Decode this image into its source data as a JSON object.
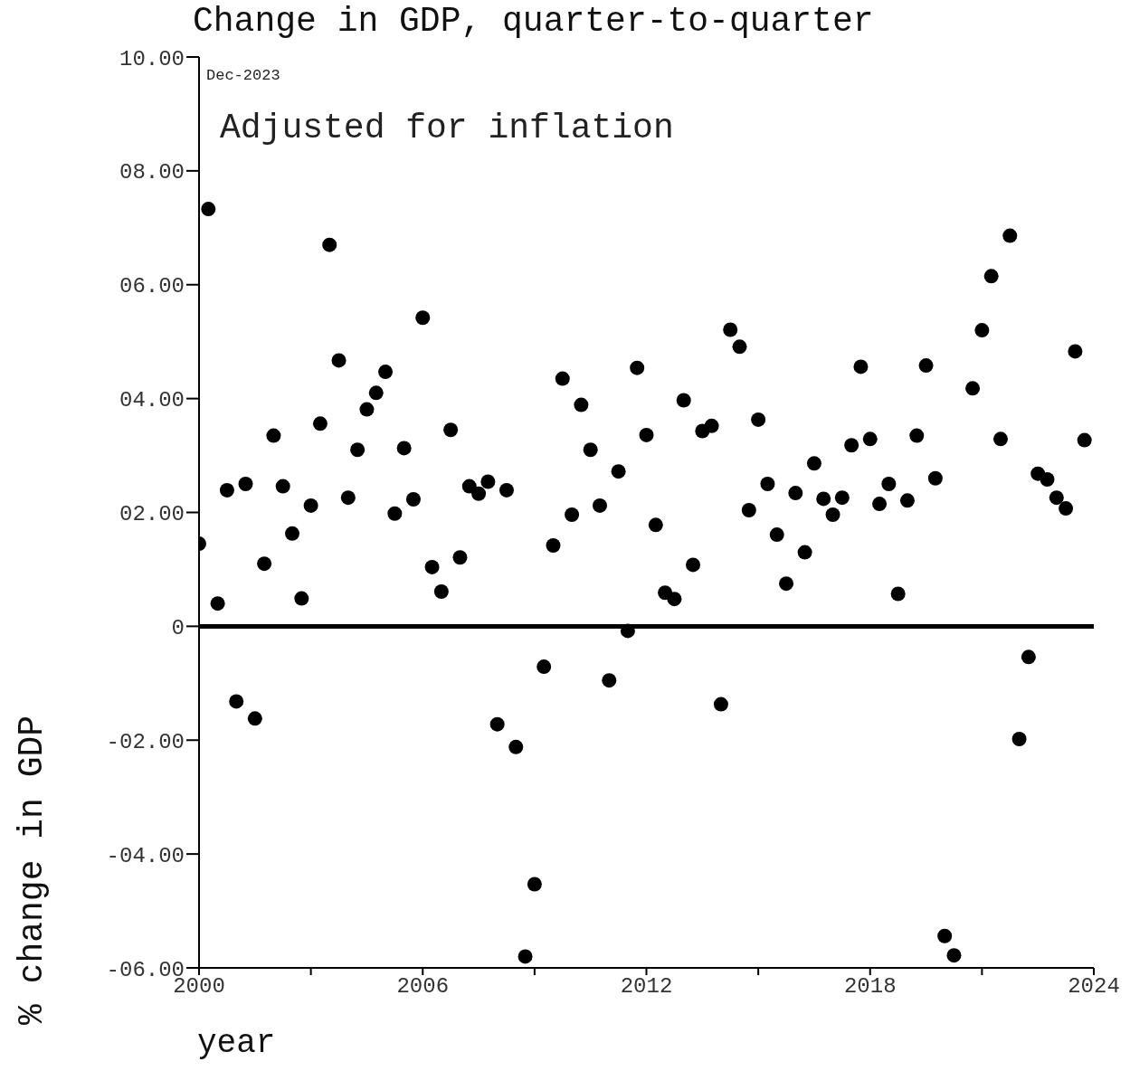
{
  "chart_data": {
    "type": "scatter",
    "title": "Change in GDP, quarter-to-quarter",
    "xlabel": "year",
    "ylabel": "% change in GDP",
    "annotations": [
      "Dec-2023",
      "Adjusted for inflation"
    ],
    "x": [
      2000,
      2000.25,
      2000.5,
      2000.75,
      2001,
      2001.25,
      2001.5,
      2001.75,
      2002,
      2002.25,
      2002.5,
      2002.75,
      2003,
      2003.25,
      2003.5,
      2003.75,
      2004,
      2004.25,
      2004.5,
      2004.75,
      2005,
      2005.25,
      2005.5,
      2005.75,
      2006,
      2006.25,
      2006.5,
      2006.75,
      2007,
      2007.25,
      2007.5,
      2007.75,
      2008,
      2008.25,
      2008.5,
      2008.75,
      2009,
      2009.25,
      2009.5,
      2009.75,
      2010,
      2010.25,
      2010.5,
      2010.75,
      2011,
      2011.25,
      2011.5,
      2011.75,
      2012,
      2012.25,
      2012.5,
      2012.75,
      2013,
      2013.25,
      2013.5,
      2013.75,
      2014,
      2014.25,
      2014.5,
      2014.75,
      2015,
      2015.25,
      2015.5,
      2015.75,
      2016,
      2016.25,
      2016.5,
      2016.75,
      2017,
      2017.25,
      2017.5,
      2017.75,
      2018,
      2018.25,
      2018.5,
      2018.75,
      2019,
      2019.25,
      2019.5,
      2019.75,
      2020,
      2020.25,
      2020.75,
      2021,
      2021.25,
      2021.5,
      2021.75,
      2022,
      2022.25,
      2022.5,
      2022.75,
      2023,
      2023.25,
      2023.5,
      2023.75
    ],
    "values": [
      1.45,
      7.33,
      0.4,
      2.39,
      -1.32,
      2.5,
      -1.62,
      1.1,
      3.35,
      2.46,
      1.63,
      0.49,
      2.12,
      3.56,
      6.7,
      4.67,
      2.26,
      3.1,
      3.81,
      4.1,
      4.47,
      1.98,
      3.13,
      2.23,
      5.42,
      1.04,
      0.61,
      3.45,
      1.21,
      2.46,
      2.33,
      2.54,
      -1.72,
      2.39,
      -2.12,
      -5.8,
      -4.53,
      -0.71,
      1.42,
      4.35,
      1.96,
      3.89,
      3.1,
      2.12,
      -0.95,
      2.72,
      -0.08,
      4.54,
      3.36,
      1.78,
      0.59,
      0.48,
      3.97,
      1.08,
      3.43,
      3.52,
      -1.37,
      5.21,
      4.91,
      2.04,
      3.63,
      2.5,
      1.61,
      0.75,
      2.34,
      1.3,
      2.86,
      2.24,
      1.96,
      2.26,
      3.18,
      4.56,
      3.29,
      2.15,
      2.5,
      0.57,
      2.21,
      3.35,
      4.58,
      2.6,
      -5.44,
      -5.78,
      4.18,
      5.2,
      6.15,
      3.29,
      6.86,
      -1.98,
      -0.54,
      2.68,
      2.58,
      2.26,
      2.07,
      4.83,
      3.27
    ],
    "color": "#000000",
    "marker": "circle",
    "xlim": [
      2000,
      2024
    ],
    "xticks": [
      2000,
      {
        "value": 2003,
        "label": null
      },
      2006,
      {
        "value": 2009,
        "label": null
      },
      2012,
      {
        "value": 2015,
        "label": null
      },
      2018,
      {
        "value": 2021,
        "label": null
      },
      2024
    ],
    "ylim": [
      -6,
      10
    ],
    "yticks": [
      {
        "value": -6,
        "label": "-06.00"
      },
      {
        "value": -4,
        "label": "-04.00"
      },
      {
        "value": -2,
        "label": "-02.00"
      },
      0,
      {
        "value": 2,
        "label": "02.00"
      },
      {
        "value": 4,
        "label": "04.00"
      },
      {
        "value": 6,
        "label": "06.00"
      },
      {
        "value": 8,
        "label": "08.00"
      },
      {
        "value": 10,
        "label": "10.00"
      }
    ],
    "ref_lines": [
      {
        "axis": "y",
        "value": 0,
        "color": "#000000"
      }
    ],
    "grid": false
  }
}
